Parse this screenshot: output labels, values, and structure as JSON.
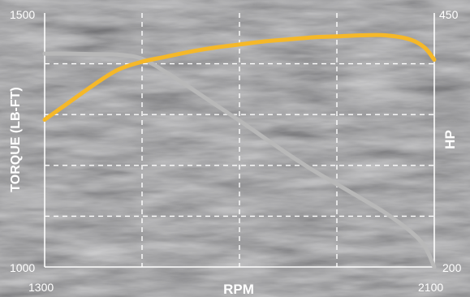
{
  "chart_data": {
    "type": "line",
    "title": "",
    "xlabel": "RPM",
    "ylabel_left": "TORQUE (LB-FT)",
    "ylabel_right": "HP",
    "xlim": [
      1300,
      2100
    ],
    "ylim_left": [
      1000,
      1500
    ],
    "ylim_right": [
      200,
      450
    ],
    "x_tick_labels": [
      "1300",
      "2100"
    ],
    "y_left_tick_labels": [
      "1500",
      "1000"
    ],
    "y_right_tick_labels": [
      "450",
      "200"
    ],
    "grid": true,
    "series": [
      {
        "axis": "right",
        "color": "#f5b829",
        "x": [
          1300,
          1350,
          1400,
          1450,
          1500,
          1550,
          1600,
          1650,
          1700,
          1750,
          1800,
          1850,
          1900,
          1950,
          2000,
          2050,
          2080,
          2100
        ],
        "values": [
          345,
          362,
          379,
          394,
          402,
          407,
          412,
          416,
          419,
          422,
          424,
          426,
          427,
          428,
          428,
          424,
          416,
          404
        ]
      },
      {
        "axis": "left",
        "color": "#b8b8b8",
        "x": [
          1300,
          1350,
          1400,
          1450,
          1500,
          1550,
          1600,
          1650,
          1700,
          1750,
          1800,
          1850,
          1900,
          1950,
          2000,
          2050,
          2080,
          2100
        ],
        "values": [
          1420,
          1420,
          1419,
          1418,
          1410,
          1383,
          1352,
          1320,
          1288,
          1255,
          1222,
          1191,
          1163,
          1135,
          1106,
          1071,
          1041,
          1000
        ]
      }
    ]
  }
}
